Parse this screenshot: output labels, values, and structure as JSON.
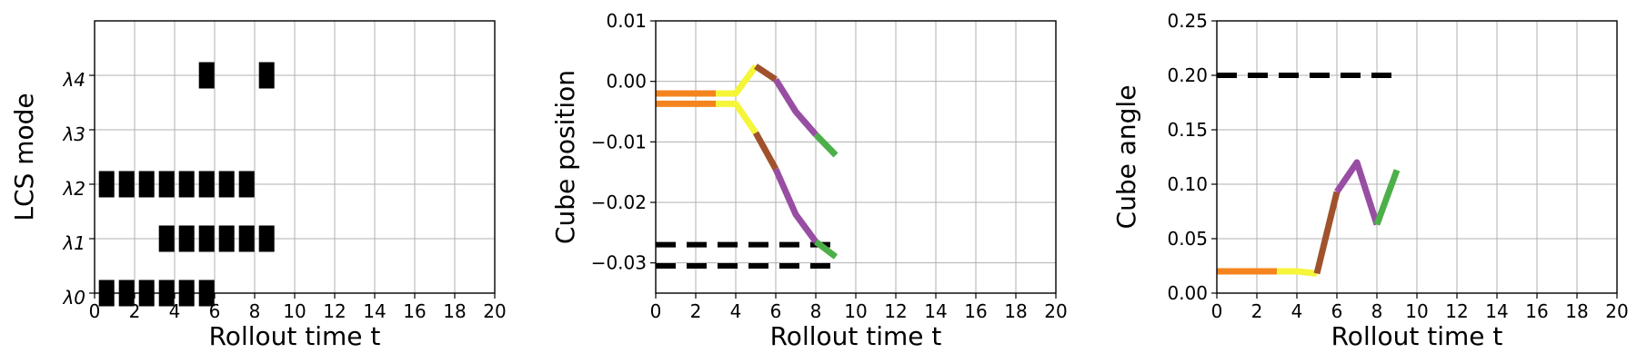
{
  "chart_data": [
    {
      "type": "mode-timeline",
      "xlabel": "Rollout time t",
      "ylabel": "LCS mode",
      "xlim": [
        0,
        20
      ],
      "xticks": [
        0,
        2,
        4,
        6,
        8,
        10,
        12,
        14,
        16,
        18,
        20
      ],
      "grid": true,
      "ycategories": [
        "λ0",
        "λ1",
        "λ2",
        "λ3",
        "λ4"
      ],
      "active_steps": [
        {
          "mode": 0,
          "t": [
            0,
            1,
            2,
            3,
            4,
            5
          ]
        },
        {
          "mode": 1,
          "t": [
            3,
            4,
            5,
            6,
            7,
            8
          ]
        },
        {
          "mode": 2,
          "t": [
            0,
            1,
            2,
            3,
            4,
            5,
            6,
            7
          ]
        },
        {
          "mode": 3,
          "t": []
        },
        {
          "mode": 4,
          "t": [
            5,
            8
          ]
        }
      ],
      "bar_color": "#000000"
    },
    {
      "type": "line",
      "xlabel": "Rollout time t",
      "ylabel": "Cube position",
      "xlim": [
        0,
        20
      ],
      "ylim": [
        -0.035,
        0.01
      ],
      "xticks": [
        0,
        2,
        4,
        6,
        8,
        10,
        12,
        14,
        16,
        18,
        20
      ],
      "yticks": [
        0.01,
        0.0,
        -0.01,
        -0.02,
        -0.03
      ],
      "yticklabels": [
        "0.01",
        "0.00",
        "−0.01",
        "−0.02",
        "−0.03"
      ],
      "grid": true,
      "series": [
        {
          "x": [
            0,
            1,
            2,
            3
          ],
          "y": [
            -0.002,
            -0.002,
            -0.002,
            -0.002
          ],
          "color": "#f5841f"
        },
        {
          "x": [
            0,
            1,
            2,
            3
          ],
          "y": [
            -0.0037,
            -0.0037,
            -0.0037,
            -0.0037
          ],
          "color": "#f5841f"
        },
        {
          "x": [
            3,
            4,
            5
          ],
          "y": [
            -0.002,
            -0.002,
            0.0025
          ],
          "color": "#f5f53a"
        },
        {
          "x": [
            3,
            4,
            5
          ],
          "y": [
            -0.0037,
            -0.0037,
            -0.0085
          ],
          "color": "#f5f53a"
        },
        {
          "x": [
            5,
            6
          ],
          "y": [
            0.0025,
            0.0003
          ],
          "color": "#a0522d"
        },
        {
          "x": [
            5,
            6
          ],
          "y": [
            -0.0085,
            -0.0145
          ],
          "color": "#a0522d"
        },
        {
          "x": [
            6,
            7,
            8
          ],
          "y": [
            0.0003,
            -0.005,
            -0.0088
          ],
          "color": "#984ea3"
        },
        {
          "x": [
            6,
            7,
            8
          ],
          "y": [
            -0.0145,
            -0.022,
            -0.0265
          ],
          "color": "#984ea3"
        },
        {
          "x": [
            8,
            9
          ],
          "y": [
            -0.0088,
            -0.0122
          ],
          "color": "#4daf4a"
        },
        {
          "x": [
            8,
            9
          ],
          "y": [
            -0.0265,
            -0.029
          ],
          "color": "#4daf4a"
        }
      ],
      "reference_lines": [
        {
          "y": -0.027,
          "x": [
            0,
            9
          ],
          "color": "#000000",
          "style": "dashed"
        },
        {
          "y": -0.0305,
          "x": [
            0,
            9
          ],
          "color": "#000000",
          "style": "dashed"
        }
      ]
    },
    {
      "type": "line",
      "xlabel": "Rollout time t",
      "ylabel": "Cube angle",
      "xlim": [
        0,
        20
      ],
      "ylim": [
        0.0,
        0.25
      ],
      "xticks": [
        0,
        2,
        4,
        6,
        8,
        10,
        12,
        14,
        16,
        18,
        20
      ],
      "yticks": [
        0.0,
        0.05,
        0.1,
        0.15,
        0.2,
        0.25
      ],
      "yticklabels": [
        "0.00",
        "0.05",
        "0.10",
        "0.15",
        "0.20",
        "0.25"
      ],
      "grid": true,
      "series": [
        {
          "x": [
            0,
            1,
            2,
            3
          ],
          "y": [
            0.02,
            0.02,
            0.02,
            0.02
          ],
          "color": "#f5841f"
        },
        {
          "x": [
            3,
            4,
            5
          ],
          "y": [
            0.02,
            0.02,
            0.018
          ],
          "color": "#f5f53a"
        },
        {
          "x": [
            5,
            6
          ],
          "y": [
            0.018,
            0.093
          ],
          "color": "#a0522d"
        },
        {
          "x": [
            6,
            7,
            8
          ],
          "y": [
            0.093,
            0.12,
            0.063
          ],
          "color": "#984ea3"
        },
        {
          "x": [
            8,
            9
          ],
          "y": [
            0.063,
            0.113
          ],
          "color": "#4daf4a"
        }
      ],
      "reference_lines": [
        {
          "y": 0.2,
          "x": [
            0,
            9
          ],
          "color": "#000000",
          "style": "dashed"
        }
      ]
    }
  ]
}
